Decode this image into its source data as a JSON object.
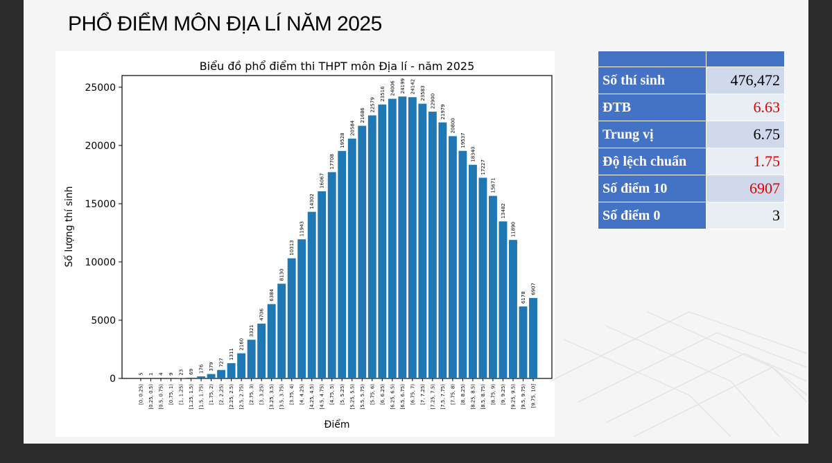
{
  "slide": {
    "title": "PHỔ ĐIỂM MÔN ĐỊA LÍ NĂM 2025"
  },
  "stats_table": {
    "header": [
      "",
      ""
    ],
    "rows": [
      {
        "label": "Số thí sinh",
        "value": "476,472",
        "highlight": false
      },
      {
        "label": "ĐTB",
        "value": "6.63",
        "highlight": true
      },
      {
        "label": "Trung vị",
        "value": "6.75",
        "highlight": false
      },
      {
        "label": "Độ lệch chuẩn",
        "value": "1.75",
        "highlight": true
      },
      {
        "label": "Số điểm 10",
        "value": "6907",
        "highlight": true
      },
      {
        "label": "Số điểm 0",
        "value": "3",
        "highlight": false
      }
    ],
    "colors": {
      "label_bg": "#4472c4",
      "highlight_text": "#e00000"
    }
  },
  "chart_data": {
    "type": "bar",
    "title": "Biểu đồ phổ điểm thi THPT môn Địa lí - năm 2025",
    "xlabel": "Điểm",
    "ylabel": "Số lượng thí sinh",
    "ylim": [
      0,
      26000
    ],
    "yticks": [
      0,
      5000,
      10000,
      15000,
      20000,
      25000
    ],
    "bar_color": "#1f77b4",
    "grid": false,
    "categories": [
      "[0, 0.25)",
      "[0.25, 0.5)",
      "[0.5, 0.75)",
      "[0.75, 1)",
      "[1, 1.25)",
      "[1.25, 1.5)",
      "[1.5, 1.75)",
      "[1.75, 2)",
      "[2, 2.25)",
      "[2.25, 2.5)",
      "[2.5, 2.75)",
      "[2.75, 3)",
      "[3, 3.25)",
      "[3.25, 3.5)",
      "[3.5, 3.75)",
      "[3.75, 4)",
      "[4, 4.25)",
      "[4.25, 4.5)",
      "[4.5, 4.75)",
      "[4.75, 5)",
      "[5, 5.25)",
      "[5.25, 5.5)",
      "[5.5, 5.75)",
      "[5.75, 6)",
      "[6, 6.25)",
      "[6.25, 6.5)",
      "[6.5, 6.75)",
      "[6.75, 7)",
      "[7, 7.25)",
      "[7.25, 7.5)",
      "[7.5, 7.75)",
      "[7.75, 8)",
      "[8, 8.25)",
      "[8.25, 8.5)",
      "[8.5, 8.75)",
      "[8.75, 9)",
      "[9, 9.25)",
      "[9.25, 9.5)",
      "[9.5, 9.75)",
      "[9.75, 10]"
    ],
    "values": [
      5,
      1,
      4,
      9,
      23,
      69,
      176,
      379,
      727,
      1311,
      2160,
      3321,
      4706,
      6384,
      8130,
      10313,
      11943,
      14302,
      16067,
      17708,
      19528,
      20584,
      21686,
      22579,
      23516,
      24006,
      24199,
      24142,
      23583,
      22900,
      21979,
      20800,
      19537,
      18340,
      17227,
      15671,
      13482,
      11890,
      6178,
      6907
    ]
  }
}
